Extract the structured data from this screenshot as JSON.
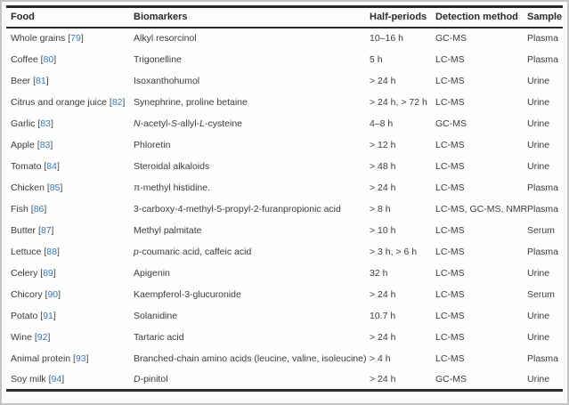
{
  "colors": {
    "link_blue": "#3579b8",
    "rule_dark": "#2a2a2a",
    "body_text": "#3c3c3c",
    "frame_gray": "#c4c4c4"
  },
  "table": {
    "columns": [
      "Food",
      "Biomarkers",
      "Half-periods",
      "Detection method",
      "Sample"
    ],
    "rows": [
      {
        "food": "Whole grains",
        "ref": "79",
        "biomarker": [
          {
            "t": "Alkyl resorcinol"
          }
        ],
        "half_period": "10–16 h",
        "detection": "GC-MS",
        "sample": "Plasma"
      },
      {
        "food": "Coffee",
        "ref": "80",
        "biomarker": [
          {
            "t": "Trigonelline"
          }
        ],
        "half_period": "5 h",
        "detection": "LC-MS",
        "sample": "Plasma"
      },
      {
        "food": "Beer",
        "ref": "81",
        "biomarker": [
          {
            "t": "Isoxanthohumol"
          }
        ],
        "half_period": "> 24 h",
        "detection": "LC-MS",
        "sample": "Urine"
      },
      {
        "food": "Citrus and orange juice",
        "ref": "82",
        "biomarker": [
          {
            "t": "Synephrine, proline betaine"
          }
        ],
        "half_period": "> 24 h, > 72 h",
        "detection": "LC-MS",
        "sample": "Urine"
      },
      {
        "food": "Garlic",
        "ref": "83",
        "biomarker": [
          {
            "t": "N",
            "i": true
          },
          {
            "t": "-acetyl-"
          },
          {
            "t": "S",
            "i": true
          },
          {
            "t": "-allyl-"
          },
          {
            "t": "L",
            "i": true
          },
          {
            "t": "-cysteine"
          }
        ],
        "half_period": "4–8 h",
        "detection": "GC-MS",
        "sample": "Urine"
      },
      {
        "food": "Apple",
        "ref": "83",
        "biomarker": [
          {
            "t": "Phloretin"
          }
        ],
        "half_period": "> 12 h",
        "detection": "LC-MS",
        "sample": "Urine"
      },
      {
        "food": "Tomato",
        "ref": "84",
        "biomarker": [
          {
            "t": "Steroidal alkaloids"
          }
        ],
        "half_period": "> 48 h",
        "detection": "LC-MS",
        "sample": "Urine"
      },
      {
        "food": "Chicken",
        "ref": "85",
        "biomarker": [
          {
            "t": "π-methyl histidine."
          }
        ],
        "half_period": "> 24 h",
        "detection": "LC-MS",
        "sample": "Plasma"
      },
      {
        "food": "Fish",
        "ref": "86",
        "biomarker": [
          {
            "t": "3-carboxy-4-methyl-5-propyl-2-furanpropionic acid"
          }
        ],
        "half_period": "> 8 h",
        "detection": "LC-MS, GC-MS, NMR",
        "sample": "Plasma"
      },
      {
        "food": "Butter",
        "ref": "87",
        "biomarker": [
          {
            "t": "Methyl palmitate"
          }
        ],
        "half_period": "> 10 h",
        "detection": "LC-MS",
        "sample": "Serum"
      },
      {
        "food": "Lettuce",
        "ref": "88",
        "biomarker": [
          {
            "t": "p",
            "i": true
          },
          {
            "t": "-coumaric acid, caffeic acid"
          }
        ],
        "half_period": "> 3 h, > 6 h",
        "detection": "LC-MS",
        "sample": "Plasma"
      },
      {
        "food": "Celery",
        "ref": "89",
        "biomarker": [
          {
            "t": "Apigenin"
          }
        ],
        "half_period": "32 h",
        "detection": "LC-MS",
        "sample": "Urine"
      },
      {
        "food": "Chicory",
        "ref": "90",
        "biomarker": [
          {
            "t": "Kaempferol-3-glucuronide"
          }
        ],
        "half_period": "> 24 h",
        "detection": "LC-MS",
        "sample": "Serum"
      },
      {
        "food": "Potato",
        "ref": "91",
        "biomarker": [
          {
            "t": "Solanidine"
          }
        ],
        "half_period": "10.7 h",
        "detection": "LC-MS",
        "sample": "Urine"
      },
      {
        "food": "Wine",
        "ref": "92",
        "biomarker": [
          {
            "t": "Tartaric acid"
          }
        ],
        "half_period": "> 24 h",
        "detection": "LC-MS",
        "sample": "Urine"
      },
      {
        "food": "Animal protein",
        "ref": "93",
        "biomarker": [
          {
            "t": "Branched-chain amino acids (leucine, valine, isoleucine)"
          }
        ],
        "half_period": "> 4 h",
        "detection": "LC-MS",
        "sample": "Plasma"
      },
      {
        "food": "Soy milk",
        "ref": "94",
        "biomarker": [
          {
            "t": "D",
            "i": true
          },
          {
            "t": "-pinitol"
          }
        ],
        "half_period": "> 24 h",
        "detection": "GC-MS",
        "sample": "Urine"
      }
    ]
  }
}
